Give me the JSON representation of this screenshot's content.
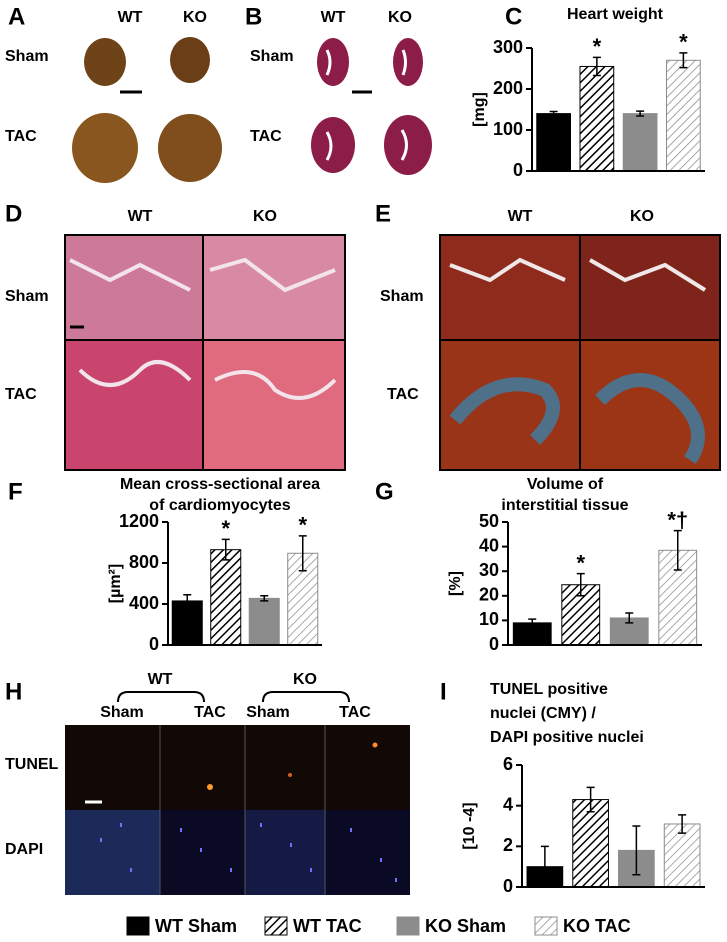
{
  "panels": {
    "A": {
      "letter": "A",
      "columns": [
        "WT",
        "KO"
      ],
      "rows": [
        "Sham",
        "TAC"
      ]
    },
    "B": {
      "letter": "B",
      "columns": [
        "WT",
        "KO"
      ],
      "rows": [
        "Sham",
        "TAC"
      ]
    },
    "D": {
      "letter": "D",
      "columns": [
        "WT",
        "KO"
      ],
      "rows": [
        "Sham",
        "TAC"
      ]
    },
    "E": {
      "letter": "E",
      "columns": [
        "WT",
        "KO"
      ],
      "rows": [
        "Sham",
        "TAC"
      ]
    },
    "H": {
      "letter": "H",
      "groups": [
        "WT",
        "KO"
      ],
      "columns": [
        "Sham",
        "TAC",
        "Sham",
        "TAC"
      ],
      "rows": [
        "TUNEL",
        "DAPI"
      ]
    }
  },
  "legend": {
    "items": [
      {
        "name": "WT Sham",
        "color": "#000000",
        "pattern": "solid"
      },
      {
        "name": "WT TAC",
        "color": "#000000",
        "pattern": "hatch-dense"
      },
      {
        "name": "KO Sham",
        "color": "#8c8c8c",
        "pattern": "solid"
      },
      {
        "name": "KO TAC",
        "color": "#8c8c8c",
        "pattern": "hatch-light"
      }
    ]
  },
  "chart_data": [
    {
      "type": "bar",
      "panel": "C",
      "title": [
        "Heart weight"
      ],
      "ylabel": "[mg]",
      "values": [
        140,
        255,
        140,
        270
      ],
      "errors": [
        5,
        22,
        6,
        18
      ],
      "value_annotations": [
        null,
        "*",
        null,
        "*"
      ],
      "ylim": [
        0,
        300
      ],
      "yticks": [
        0,
        100,
        200,
        300
      ]
    },
    {
      "type": "bar",
      "panel": "F",
      "title": [
        "Mean cross-sectional area",
        "of cardiomyocytes"
      ],
      "ylabel": "[µm²]",
      "values": [
        430,
        930,
        455,
        895
      ],
      "errors": [
        60,
        100,
        25,
        170
      ],
      "value_annotations": [
        null,
        "*",
        null,
        "*"
      ],
      "ylim": [
        0,
        1200
      ],
      "yticks": [
        0,
        400,
        800,
        1200
      ]
    },
    {
      "type": "bar",
      "panel": "G",
      "title": [
        "Volume of",
        "interstitial tissue"
      ],
      "ylabel": "[%]",
      "values": [
        9,
        24.5,
        11,
        38.5
      ],
      "errors": [
        1.5,
        4.5,
        2,
        8
      ],
      "value_annotations": [
        null,
        "*",
        null,
        "*†"
      ],
      "ylim": [
        0,
        50
      ],
      "yticks": [
        0,
        10,
        20,
        30,
        40,
        50
      ]
    },
    {
      "type": "bar",
      "panel": "I",
      "title": [
        "TUNEL positive",
        "nuclei (CMY) /",
        "DAPI positive nuclei"
      ],
      "ylabel": "[10 -4]",
      "values": [
        1.0,
        4.3,
        1.8,
        3.1
      ],
      "errors": [
        1.0,
        0.6,
        1.2,
        0.45
      ],
      "value_annotations": [
        null,
        null,
        null,
        null
      ],
      "ylim": [
        0,
        6
      ],
      "yticks": [
        0,
        2,
        4,
        6
      ]
    }
  ]
}
